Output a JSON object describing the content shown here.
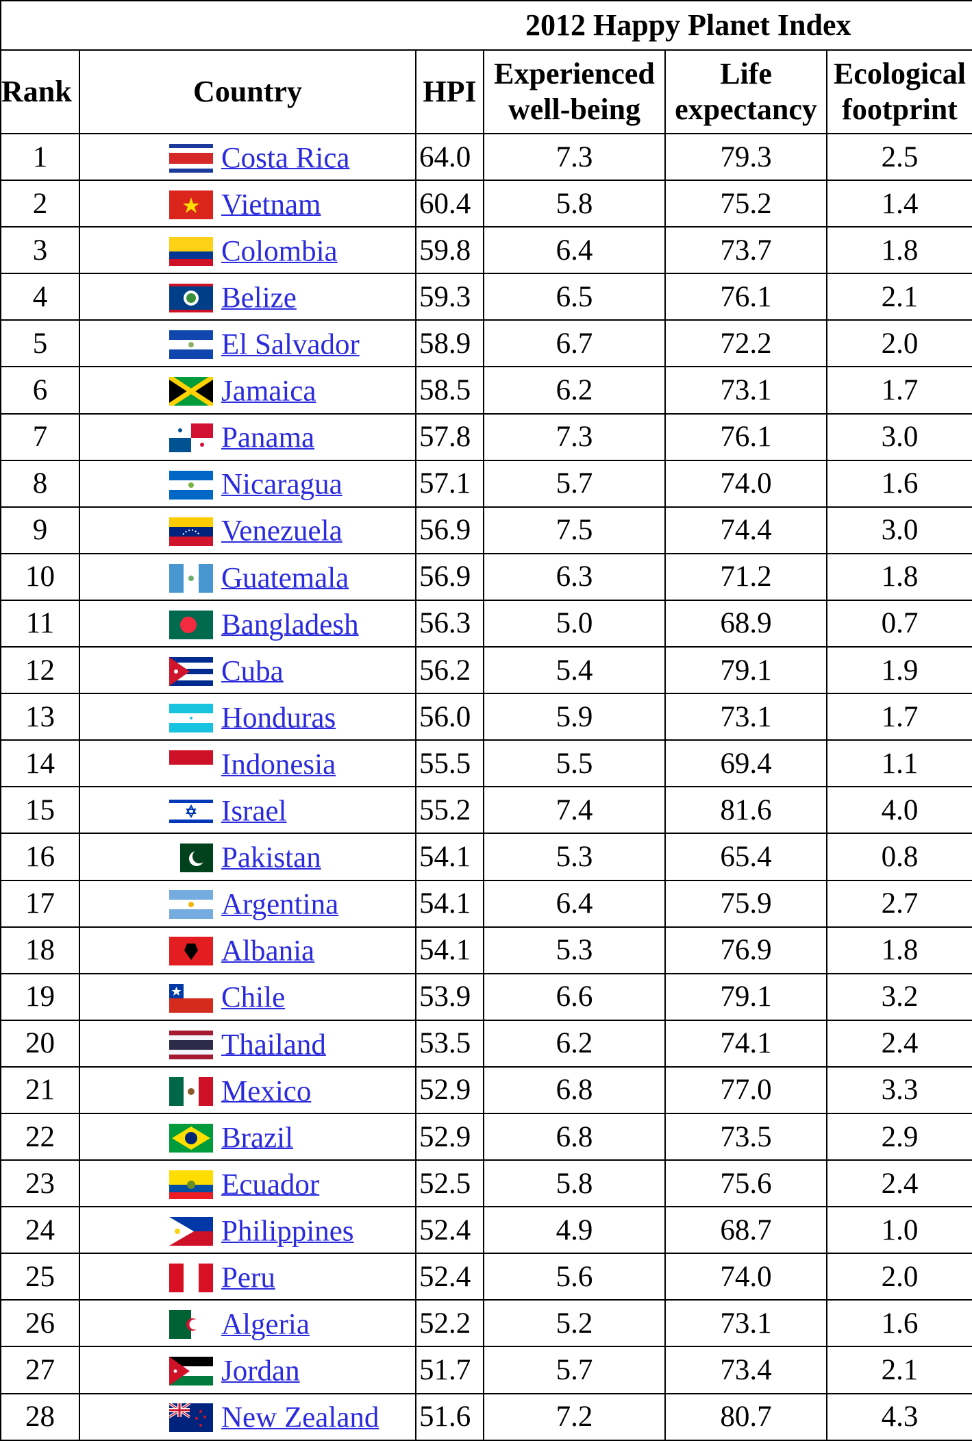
{
  "title": "2012 Happy Planet Index",
  "headers": {
    "rank": "Rank",
    "country": "Country",
    "hpi": "HPI",
    "wellbeing_1": "Experienced",
    "wellbeing_2": "well-being",
    "life_1": "Life",
    "life_2": "expectancy",
    "eco_1": "Ecological",
    "eco_2": "footprint"
  },
  "rows": [
    {
      "rank": "1",
      "country": "Costa Rica",
      "flag": "costa-rica-flag-icon",
      "hpi": "64.0",
      "wellbeing": "7.3",
      "life": "79.3",
      "footprint": "2.5"
    },
    {
      "rank": "2",
      "country": "Vietnam",
      "flag": "vietnam-flag-icon",
      "hpi": "60.4",
      "wellbeing": "5.8",
      "life": "75.2",
      "footprint": "1.4"
    },
    {
      "rank": "3",
      "country": "Colombia",
      "flag": "colombia-flag-icon",
      "hpi": "59.8",
      "wellbeing": "6.4",
      "life": "73.7",
      "footprint": "1.8"
    },
    {
      "rank": "4",
      "country": "Belize",
      "flag": "belize-flag-icon",
      "hpi": "59.3",
      "wellbeing": "6.5",
      "life": "76.1",
      "footprint": "2.1"
    },
    {
      "rank": "5",
      "country": "El Salvador",
      "flag": "el-salvador-flag-icon",
      "hpi": "58.9",
      "wellbeing": "6.7",
      "life": "72.2",
      "footprint": "2.0"
    },
    {
      "rank": "6",
      "country": "Jamaica",
      "flag": "jamaica-flag-icon",
      "hpi": "58.5",
      "wellbeing": "6.2",
      "life": "73.1",
      "footprint": "1.7"
    },
    {
      "rank": "7",
      "country": "Panama",
      "flag": "panama-flag-icon",
      "hpi": "57.8",
      "wellbeing": "7.3",
      "life": "76.1",
      "footprint": "3.0"
    },
    {
      "rank": "8",
      "country": "Nicaragua",
      "flag": "nicaragua-flag-icon",
      "hpi": "57.1",
      "wellbeing": "5.7",
      "life": "74.0",
      "footprint": "1.6"
    },
    {
      "rank": "9",
      "country": "Venezuela",
      "flag": "venezuela-flag-icon",
      "hpi": "56.9",
      "wellbeing": "7.5",
      "life": "74.4",
      "footprint": "3.0"
    },
    {
      "rank": "10",
      "country": "Guatemala",
      "flag": "guatemala-flag-icon",
      "hpi": "56.9",
      "wellbeing": "6.3",
      "life": "71.2",
      "footprint": "1.8"
    },
    {
      "rank": "11",
      "country": "Bangladesh",
      "flag": "bangladesh-flag-icon",
      "hpi": "56.3",
      "wellbeing": "5.0",
      "life": "68.9",
      "footprint": "0.7"
    },
    {
      "rank": "12",
      "country": "Cuba",
      "flag": "cuba-flag-icon",
      "hpi": "56.2",
      "wellbeing": "5.4",
      "life": "79.1",
      "footprint": "1.9"
    },
    {
      "rank": "13",
      "country": "Honduras",
      "flag": "honduras-flag-icon",
      "hpi": "56.0",
      "wellbeing": "5.9",
      "life": "73.1",
      "footprint": "1.7"
    },
    {
      "rank": "14",
      "country": "Indonesia",
      "flag": "indonesia-flag-icon",
      "hpi": "55.5",
      "wellbeing": "5.5",
      "life": "69.4",
      "footprint": "1.1"
    },
    {
      "rank": "15",
      "country": "Israel",
      "flag": "israel-flag-icon",
      "hpi": "55.2",
      "wellbeing": "7.4",
      "life": "81.6",
      "footprint": "4.0"
    },
    {
      "rank": "16",
      "country": "Pakistan",
      "flag": "pakistan-flag-icon",
      "hpi": "54.1",
      "wellbeing": "5.3",
      "life": "65.4",
      "footprint": "0.8"
    },
    {
      "rank": "17",
      "country": "Argentina",
      "flag": "argentina-flag-icon",
      "hpi": "54.1",
      "wellbeing": "6.4",
      "life": "75.9",
      "footprint": "2.7"
    },
    {
      "rank": "18",
      "country": "Albania",
      "flag": "albania-flag-icon",
      "hpi": "54.1",
      "wellbeing": "5.3",
      "life": "76.9",
      "footprint": "1.8"
    },
    {
      "rank": "19",
      "country": "Chile",
      "flag": "chile-flag-icon",
      "hpi": "53.9",
      "wellbeing": "6.6",
      "life": "79.1",
      "footprint": "3.2"
    },
    {
      "rank": "20",
      "country": "Thailand",
      "flag": "thailand-flag-icon",
      "hpi": "53.5",
      "wellbeing": "6.2",
      "life": "74.1",
      "footprint": "2.4"
    },
    {
      "rank": "21",
      "country": "Mexico",
      "flag": "mexico-flag-icon",
      "hpi": "52.9",
      "wellbeing": "6.8",
      "life": "77.0",
      "footprint": "3.3"
    },
    {
      "rank": "22",
      "country": "Brazil",
      "flag": "brazil-flag-icon",
      "hpi": "52.9",
      "wellbeing": "6.8",
      "life": "73.5",
      "footprint": "2.9"
    },
    {
      "rank": "23",
      "country": "Ecuador",
      "flag": "ecuador-flag-icon",
      "hpi": "52.5",
      "wellbeing": "5.8",
      "life": "75.6",
      "footprint": "2.4"
    },
    {
      "rank": "24",
      "country": "Philippines",
      "flag": "philippines-flag-icon",
      "hpi": "52.4",
      "wellbeing": "4.9",
      "life": "68.7",
      "footprint": "1.0"
    },
    {
      "rank": "25",
      "country": "Peru",
      "flag": "peru-flag-icon",
      "hpi": "52.4",
      "wellbeing": "5.6",
      "life": "74.0",
      "footprint": "2.0"
    },
    {
      "rank": "26",
      "country": "Algeria",
      "flag": "algeria-flag-icon",
      "hpi": "52.2",
      "wellbeing": "5.2",
      "life": "73.1",
      "footprint": "1.6"
    },
    {
      "rank": "27",
      "country": "Jordan",
      "flag": "jordan-flag-icon",
      "hpi": "51.7",
      "wellbeing": "5.7",
      "life": "73.4",
      "footprint": "2.1"
    },
    {
      "rank": "28",
      "country": "New Zealand",
      "flag": "new-zealand-flag-icon",
      "hpi": "51.6",
      "wellbeing": "7.2",
      "life": "80.7",
      "footprint": "4.3"
    }
  ],
  "colors": {
    "link": "#2b2bdd",
    "border": "#000000",
    "background": "#ffffff"
  }
}
